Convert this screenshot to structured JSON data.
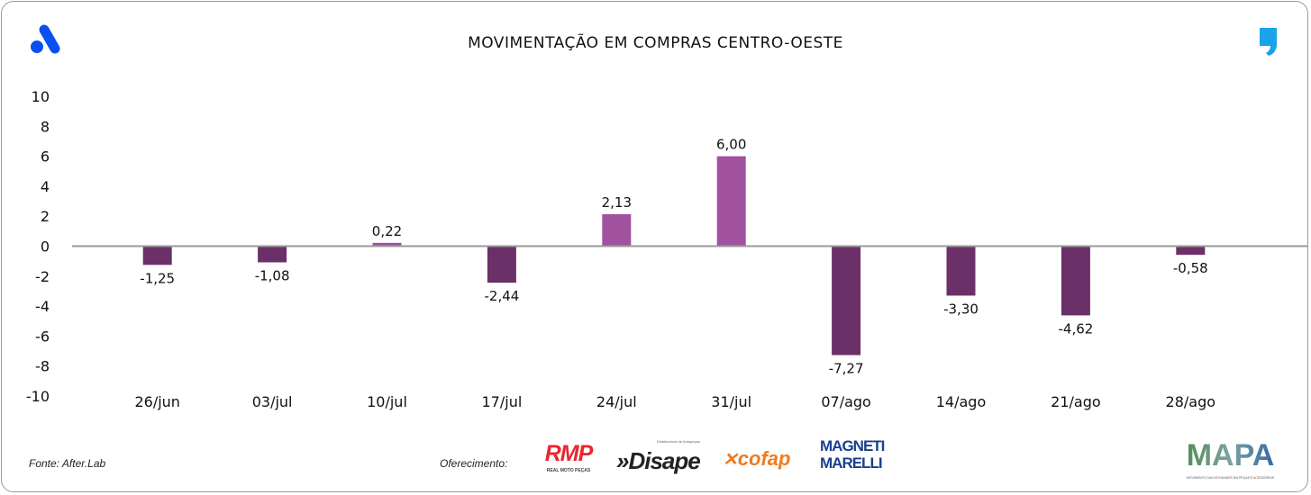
{
  "chart_data": {
    "type": "bar",
    "title": "MOVIMENTAÇÃO EM COMPRAS CENTRO-OESTE",
    "categories": [
      "26/jun",
      "03/jul",
      "10/jul",
      "17/jul",
      "24/jul",
      "31/jul",
      "07/ago",
      "14/ago",
      "21/ago",
      "28/ago"
    ],
    "values": [
      -1.25,
      -1.08,
      0.22,
      -2.44,
      2.13,
      6.0,
      -7.27,
      -3.3,
      -4.62,
      -0.58
    ],
    "data_labels": [
      "-1,25",
      "-1,08",
      "0,22",
      "-2,44",
      "2,13",
      "6,00",
      "-7,27",
      "-3,30",
      "-4,62",
      "-0,58"
    ],
    "ylim": [
      -10,
      10
    ],
    "yticks": [
      10,
      8,
      6,
      4,
      2,
      0,
      -2,
      -4,
      -6,
      -8,
      -10
    ],
    "grid": false,
    "legend": "none",
    "colors": {
      "positive": "#a0529f",
      "negative": "#6b3068",
      "axis": "#9a9a9a"
    }
  },
  "footer": {
    "source": "Fonte: After.Lab",
    "sponsor_label": "Oferecimento:",
    "sponsors": [
      "RMP",
      "Disape",
      "cofap",
      "MAGNETI MARELLI"
    ],
    "rmp_tagline": "REAL MOTO PEÇAS",
    "disape_tagline": "Distribuidora de Autopeças",
    "mapa": "MAPA",
    "mapa_tagline": "MOVIMENTO DAS ATIVIDADES EM PEÇAS E ACESSÓRIOS"
  }
}
